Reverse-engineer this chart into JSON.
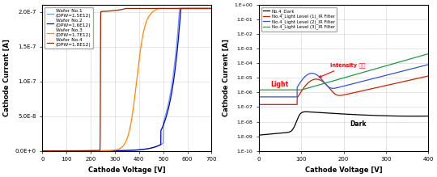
{
  "left": {
    "xlabel": "Cathode Voltage [V]",
    "ylabel": "Cathode Current [A]",
    "xlim": [
      0,
      700
    ],
    "ylim": [
      0,
      2.1e-07
    ],
    "yticks": [
      0,
      5e-08,
      1e-07,
      1.5e-07,
      2e-07
    ],
    "ytick_labels": [
      "0.0E+0",
      "5.0E-8",
      "1.0E-7",
      "1.5E-7",
      "2.0E-7"
    ],
    "xticks": [
      0,
      100,
      200,
      300,
      400,
      500,
      600,
      700
    ],
    "legend_labels": [
      "Wafer No.1\n(DPW=1.5E12)",
      "Wafer No.2\n(DPW=1.6E12)",
      "Wafer No.3\n(DPW=1.7E12)",
      "Wafer No.4\n(DPW=1.8E12)"
    ],
    "colors": [
      "#6699ff",
      "#0000bb",
      "#ff8800",
      "#992200"
    ],
    "breakdown_voltages": [
      610,
      600,
      390,
      240
    ]
  },
  "right": {
    "xlabel": "Cathode Voltage [V]",
    "ylabel": "Cathode Current [A]",
    "xlim": [
      0,
      400
    ],
    "xticks": [
      0,
      100,
      200,
      300,
      400
    ],
    "yticks_log": [
      -10,
      -9,
      -8,
      -7,
      -6,
      -5,
      -4,
      -3,
      -2,
      -1,
      0
    ],
    "ytick_labels": [
      "1.E-10",
      "1.E-09",
      "1.E-08",
      "1.E-07",
      "1.E-06",
      "1.E-05",
      "1.E-04",
      "1.E-03",
      "1.E-02",
      "1.E-01",
      "1.E+00"
    ],
    "legend_labels": [
      "No.4_Dark",
      "No.4_Light Level (1)_IR Filter",
      "No.4_Light Level (2)_IR Filter",
      "No.4_Light Level (3)_IR Filter"
    ],
    "colors": [
      "#000000",
      "#cc2200",
      "#3355cc",
      "#229944"
    ],
    "annotation_intensity": "Intensity 증가",
    "annotation_light": "Light",
    "annotation_dark": "Dark"
  }
}
